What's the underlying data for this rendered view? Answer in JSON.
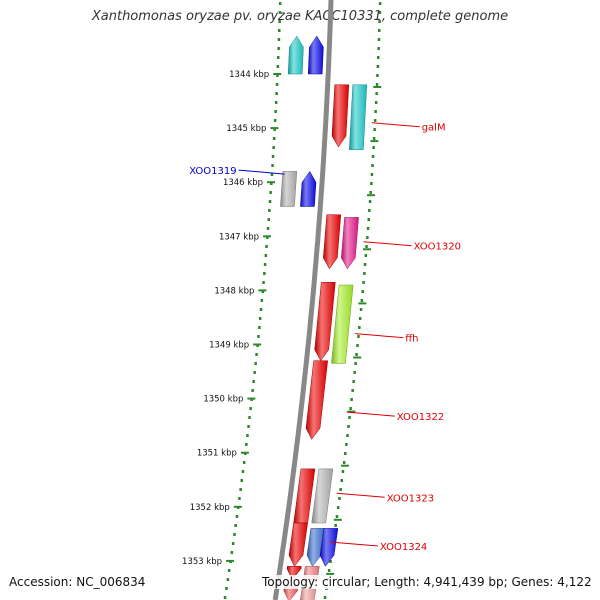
{
  "title": "Xanthomonas oryzae pv. oryzae KACC10331, complete genome",
  "footer": {
    "accession": "Accession: NC_006834",
    "summary": "Topology: circular; Length: 4,941,439 bp; Genes: 4,122"
  },
  "ticks": [
    {
      "kbp": 1344,
      "label": "1344 kbp"
    },
    {
      "kbp": 1345,
      "label": "1345 kbp"
    },
    {
      "kbp": 1346,
      "label": "1346 kbp"
    },
    {
      "kbp": 1347,
      "label": "1347 kbp"
    },
    {
      "kbp": 1348,
      "label": "1348 kbp"
    },
    {
      "kbp": 1349,
      "label": "1349 kbp"
    },
    {
      "kbp": 1350,
      "label": "1350 kbp"
    },
    {
      "kbp": 1351,
      "label": "1351 kbp"
    },
    {
      "kbp": 1352,
      "label": "1352 kbp"
    },
    {
      "kbp": 1353,
      "label": "1353 kbp"
    }
  ],
  "genes": [
    {
      "strand": "minus",
      "lane": 0,
      "start": 1343.3,
      "end": 1344.0,
      "dir": "up",
      "color": "#1dcbcb"
    },
    {
      "strand": "minus",
      "lane": 1,
      "start": 1343.3,
      "end": 1344.0,
      "dir": "up",
      "color": "#0b0bee"
    },
    {
      "strand": "plus",
      "lane": 0,
      "start": 1344.2,
      "end": 1345.35,
      "dir": "down",
      "color": "#ee0000"
    },
    {
      "strand": "plus",
      "lane": 1,
      "start": 1344.2,
      "end": 1345.4,
      "dir": "none",
      "color": "#1dcbcb"
    },
    {
      "strand": "minus",
      "lane": 0,
      "start": 1345.8,
      "end": 1346.45,
      "dir": "none",
      "color": "#b4b4b4"
    },
    {
      "strand": "minus",
      "lane": 1,
      "start": 1345.8,
      "end": 1346.45,
      "dir": "up",
      "color": "#0b0bee"
    },
    {
      "strand": "plus",
      "lane": 0,
      "start": 1346.6,
      "end": 1347.6,
      "dir": "down",
      "color": "#ee0000"
    },
    {
      "strand": "plus",
      "lane": 1,
      "start": 1346.65,
      "end": 1347.6,
      "dir": "down",
      "color": "#e6198c"
    },
    {
      "strand": "plus",
      "lane": 0,
      "start": 1347.85,
      "end": 1349.3,
      "dir": "down",
      "color": "#ee0000"
    },
    {
      "strand": "plus",
      "lane": 1,
      "start": 1347.9,
      "end": 1349.35,
      "dir": "none",
      "color": "#a6f02a"
    },
    {
      "strand": "plus",
      "lane": 0,
      "start": 1349.3,
      "end": 1350.75,
      "dir": "down",
      "color": "#ee0000"
    },
    {
      "strand": "plus",
      "lane": 0,
      "start": 1351.3,
      "end": 1352.3,
      "dir": "none",
      "color": "#ee0000"
    },
    {
      "strand": "plus",
      "lane": 1,
      "start": 1351.3,
      "end": 1352.3,
      "dir": "none",
      "color": "#b4b4b4"
    },
    {
      "strand": "plus",
      "lane": 0,
      "start": 1352.3,
      "end": 1353.1,
      "dir": "down",
      "color": "#ee0000"
    },
    {
      "strand": "plus",
      "lane": 1,
      "start": 1352.4,
      "end": 1353.1,
      "dir": "down",
      "color": "#3a70d0"
    },
    {
      "strand": "plus",
      "lane": 2,
      "start": 1352.4,
      "end": 1353.1,
      "dir": "down",
      "color": "#0b0bee"
    },
    {
      "strand": "plus",
      "lane": 0,
      "start": 1353.1,
      "end": 1353.35,
      "dir": "down",
      "color": "#ee0000"
    },
    {
      "strand": "plus",
      "lane": 1,
      "start": 1353.1,
      "end": 1353.4,
      "dir": "none",
      "color": "#f08080"
    },
    {
      "strand": "plus",
      "lane": 0,
      "start": 1353.45,
      "end": 1353.75,
      "dir": "down",
      "color": "#f05a5a"
    },
    {
      "strand": "plus",
      "lane": 1,
      "start": 1353.5,
      "end": 1353.75,
      "dir": "none",
      "color": "#f4a0a0"
    },
    {
      "strand": "plus",
      "lane": 0,
      "start": 1353.75,
      "end": 1353.9,
      "dir": "none",
      "color": "#ee0000"
    }
  ],
  "labels": [
    {
      "text": "galM",
      "kbp": 1344.9,
      "side": "right",
      "color": "#dd0000"
    },
    {
      "text": "XOO1319",
      "kbp": 1345.85,
      "side": "left",
      "color": "#0000cc"
    },
    {
      "text": "XOO1320",
      "kbp": 1347.1,
      "side": "right",
      "color": "#dd0000"
    },
    {
      "text": "ffh",
      "kbp": 1348.8,
      "side": "right",
      "color": "#dd0000"
    },
    {
      "text": "XOO1322",
      "kbp": 1350.25,
      "side": "right",
      "color": "#dd0000"
    },
    {
      "text": "XOO1323",
      "kbp": 1351.75,
      "side": "right",
      "color": "#dd0000"
    },
    {
      "text": "XOO1324",
      "kbp": 1352.65,
      "side": "right",
      "color": "#dd0000"
    }
  ]
}
